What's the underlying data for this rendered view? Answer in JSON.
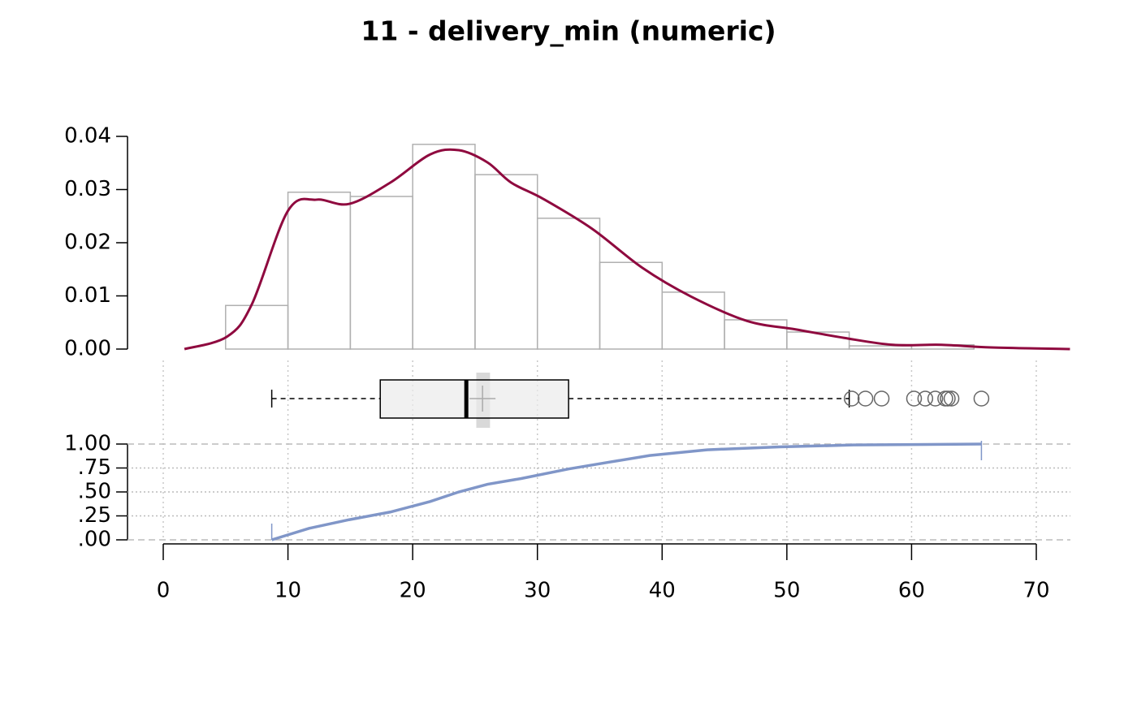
{
  "chart_data": [
    {
      "type": "histogram",
      "title": "11 - delivery_min (numeric)",
      "bins": [
        5,
        10,
        15,
        20,
        25,
        30,
        35,
        40,
        45,
        50,
        55,
        60,
        65
      ],
      "values": [
        0.0082,
        0.0295,
        0.0287,
        0.0385,
        0.0328,
        0.0246,
        0.0163,
        0.0107,
        0.0055,
        0.0032,
        0.0006,
        0.0008
      ],
      "color": "#b0b0b0",
      "density": {
        "x": [
          1.7,
          5.1,
          7.1,
          10,
          12.3,
          14.9,
          18.2,
          21.4,
          23.7,
          26,
          27.9,
          30.5,
          34.4,
          38.4,
          42.3,
          46.8,
          50.7,
          54.6,
          58.5,
          62.4,
          66.4,
          72.7
        ],
        "values": [
          0,
          0.0023,
          0.0084,
          0.026,
          0.0281,
          0.0273,
          0.0313,
          0.0366,
          0.0374,
          0.0351,
          0.0313,
          0.0282,
          0.0226,
          0.0153,
          0.0099,
          0.0053,
          0.0037,
          0.0021,
          0.0008,
          0.0008,
          0.0003,
          0
        ],
        "color": "#8f0a3f"
      },
      "ylim": [
        0,
        0.04
      ],
      "yticks": [
        {
          "value": 0,
          "label": "0.00"
        },
        0.01,
        0.02,
        0.03,
        0.04
      ]
    },
    {
      "type": "box",
      "whisker_low": 8.7,
      "q1": 17.4,
      "median": 24.3,
      "q3": 32.5,
      "whisker_high": 55.0,
      "mean": 25.6,
      "mean_ci": [
        25.1,
        26.2
      ],
      "outliers": [
        55.2,
        56.3,
        57.6,
        60.2,
        61.1,
        61.9,
        62.7,
        62.9,
        63.2,
        65.6
      ]
    },
    {
      "type": "ecdf",
      "x": [
        8.7,
        11.7,
        14.9,
        18.2,
        21.4,
        23.7,
        26,
        28.7,
        32.5,
        35.7,
        39,
        43.6,
        49.4,
        55.3,
        65.6
      ],
      "values": [
        0,
        0.12,
        0.21,
        0.29,
        0.4,
        0.5,
        0.58,
        0.64,
        0.74,
        0.81,
        0.88,
        0.94,
        0.97,
        0.99,
        1.0
      ],
      "color": "#8096c8",
      "xlim": [
        0,
        70
      ],
      "xticks": [
        0,
        10,
        20,
        30,
        40,
        50,
        60,
        70
      ],
      "ylim": [
        0,
        1
      ],
      "yticks": [
        {
          "value": 0,
          "label": ".00"
        },
        {
          "value": 0.25,
          "label": ".25"
        },
        {
          "value": 0.5,
          "label": ".50"
        },
        {
          "value": 0.75,
          "label": ".75"
        },
        {
          "value": 1,
          "label": "1.00"
        }
      ]
    }
  ]
}
